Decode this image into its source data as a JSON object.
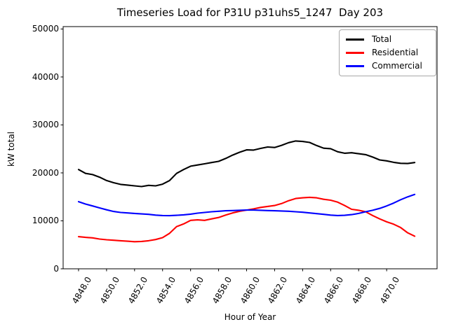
{
  "chart_data": {
    "type": "line",
    "title": "Timeseries Load for P31U p31uhs5_1247  Day 203",
    "xlabel": "Hour of Year",
    "ylabel": "kW total",
    "grid": false,
    "legend_position": "upper right",
    "xlim": [
      4846.9,
      4873.6
    ],
    "ylim": [
      0,
      50500
    ],
    "xticks": [
      4848,
      4850,
      4852,
      4854,
      4856,
      4858,
      4860,
      4862,
      4864,
      4866,
      4868,
      4870
    ],
    "xtick_labels": [
      "4848.0",
      "4850.0",
      "4852.0",
      "4854.0",
      "4856.0",
      "4858.0",
      "4860.0",
      "4862.0",
      "4864.0",
      "4866.0",
      "4868.0",
      "4870.0"
    ],
    "yticks": [
      0,
      10000,
      20000,
      30000,
      40000,
      50000
    ],
    "ytick_labels": [
      "0",
      "10000",
      "20000",
      "30000",
      "40000",
      "50000"
    ],
    "x": [
      4848.0,
      4848.5,
      4849.0,
      4849.5,
      4850.0,
      4850.5,
      4851.0,
      4851.5,
      4852.0,
      4852.5,
      4853.0,
      4853.5,
      4854.0,
      4854.5,
      4855.0,
      4855.5,
      4856.0,
      4856.5,
      4857.0,
      4857.5,
      4858.0,
      4858.5,
      4859.0,
      4859.5,
      4860.0,
      4860.5,
      4861.0,
      4861.5,
      4862.0,
      4862.5,
      4863.0,
      4863.5,
      4864.0,
      4864.5,
      4865.0,
      4865.5,
      4866.0,
      4866.5,
      4867.0,
      4867.5,
      4868.0,
      4868.5,
      4869.0,
      4869.5,
      4870.0,
      4870.5,
      4871.0,
      4871.5,
      4872.0
    ],
    "series": [
      {
        "name": "Total",
        "color": "#000000",
        "values": [
          20700,
          19900,
          19650,
          19100,
          18400,
          17950,
          17600,
          17450,
          17300,
          17150,
          17400,
          17300,
          17650,
          18400,
          19900,
          20700,
          21400,
          21650,
          21900,
          22150,
          22400,
          23000,
          23700,
          24300,
          24800,
          24750,
          25100,
          25400,
          25300,
          25750,
          26300,
          26650,
          26550,
          26350,
          25700,
          25150,
          25050,
          24400,
          24100,
          24200,
          24000,
          23800,
          23300,
          22700,
          22500,
          22200,
          22000,
          21950,
          22150
        ]
      },
      {
        "name": "Residential",
        "color": "#ff0000",
        "values": [
          6700,
          6550,
          6450,
          6200,
          6050,
          5950,
          5850,
          5750,
          5650,
          5700,
          5850,
          6100,
          6500,
          7400,
          8800,
          9350,
          10100,
          10200,
          10100,
          10400,
          10700,
          11200,
          11650,
          12000,
          12250,
          12500,
          12800,
          13000,
          13200,
          13600,
          14200,
          14650,
          14800,
          14900,
          14800,
          14500,
          14300,
          13900,
          13200,
          12400,
          12200,
          11900,
          11100,
          10400,
          9800,
          9300,
          8600,
          7500,
          6800
        ]
      },
      {
        "name": "Commercial",
        "color": "#0000ff",
        "values": [
          14000,
          13500,
          13100,
          12700,
          12300,
          11950,
          11750,
          11650,
          11550,
          11450,
          11350,
          11200,
          11100,
          11080,
          11150,
          11250,
          11400,
          11600,
          11750,
          11900,
          12000,
          12100,
          12150,
          12200,
          12250,
          12250,
          12200,
          12150,
          12100,
          12050,
          12000,
          11900,
          11800,
          11650,
          11500,
          11350,
          11200,
          11100,
          11150,
          11300,
          11550,
          11900,
          12200,
          12600,
          13100,
          13700,
          14400,
          15000,
          15500
        ]
      }
    ]
  }
}
